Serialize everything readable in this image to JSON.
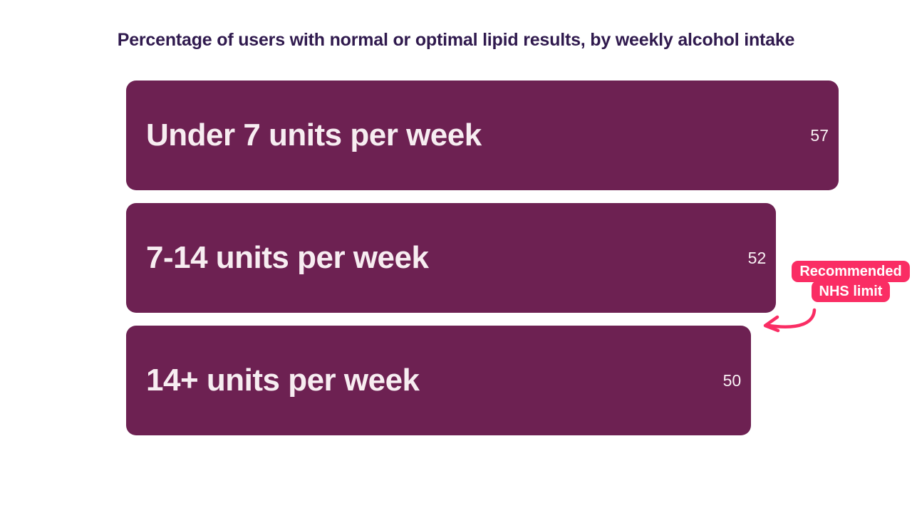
{
  "chart_data": {
    "type": "bar",
    "orientation": "horizontal",
    "title": "Percentage of users with normal or optimal lipid results, by weekly alcohol intake",
    "categories": [
      "Under 7 units per week",
      "7-14 units per week",
      "14+ units per week"
    ],
    "values": [
      57,
      52,
      50
    ],
    "value_axis_range": [
      0,
      57
    ],
    "grid": false,
    "legend": false,
    "data_labels": "inside-end"
  },
  "annotation": {
    "line1": "Recommended",
    "line2": "NHS limit",
    "points_to": "gap between 7-14 and 14+ bars"
  },
  "colors": {
    "background": "#ffffff",
    "bar_fill": "#6d2152",
    "bar_text": "#f7edf1",
    "title_text": "#301a4e",
    "accent_pink": "#fa2d64"
  }
}
